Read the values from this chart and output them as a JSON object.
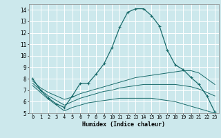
{
  "xlabel": "Humidex (Indice chaleur)",
  "bg_color": "#cce8ec",
  "grid_color": "#ffffff",
  "line_color": "#1a6b6b",
  "xlim": [
    -0.5,
    23.5
  ],
  "ylim": [
    5,
    14.5
  ],
  "yticks": [
    5,
    6,
    7,
    8,
    9,
    10,
    11,
    12,
    13,
    14
  ],
  "xticks": [
    0,
    1,
    2,
    3,
    4,
    5,
    6,
    7,
    8,
    9,
    10,
    11,
    12,
    13,
    14,
    15,
    16,
    17,
    18,
    19,
    20,
    21,
    22,
    23
  ],
  "line1_x": [
    0,
    1,
    2,
    3,
    4,
    5,
    6,
    7,
    8,
    9,
    10,
    11,
    12,
    13,
    14,
    15,
    16,
    17,
    18,
    19,
    20,
    21,
    22,
    23
  ],
  "line1_y": [
    8.0,
    7.0,
    6.3,
    5.8,
    5.5,
    6.5,
    7.6,
    7.6,
    8.4,
    9.3,
    10.7,
    12.5,
    13.8,
    14.1,
    14.1,
    13.5,
    12.6,
    10.5,
    9.2,
    8.8,
    8.1,
    7.5,
    6.5,
    5.1
  ],
  "line2_x": [
    0,
    1,
    2,
    3,
    4,
    5,
    6,
    7,
    8,
    9,
    10,
    11,
    12,
    13,
    14,
    15,
    16,
    17,
    18,
    19,
    20,
    21,
    22,
    23
  ],
  "line2_y": [
    7.8,
    7.2,
    6.8,
    6.5,
    6.2,
    6.4,
    6.7,
    6.9,
    7.1,
    7.3,
    7.5,
    7.7,
    7.9,
    8.1,
    8.2,
    8.3,
    8.4,
    8.5,
    8.6,
    8.7,
    8.7,
    8.5,
    8.0,
    7.5
  ],
  "line3_x": [
    0,
    1,
    2,
    3,
    4,
    5,
    6,
    7,
    8,
    9,
    10,
    11,
    12,
    13,
    14,
    15,
    16,
    17,
    18,
    19,
    20,
    21,
    22,
    23
  ],
  "line3_y": [
    7.6,
    7.0,
    6.5,
    6.1,
    5.7,
    6.0,
    6.3,
    6.5,
    6.7,
    6.9,
    7.0,
    7.2,
    7.3,
    7.4,
    7.5,
    7.5,
    7.5,
    7.5,
    7.5,
    7.4,
    7.3,
    7.1,
    6.8,
    6.5
  ],
  "line4_x": [
    0,
    1,
    2,
    3,
    4,
    5,
    6,
    7,
    8,
    9,
    10,
    11,
    12,
    13,
    14,
    15,
    16,
    17,
    18,
    19,
    20,
    21,
    22,
    23
  ],
  "line4_y": [
    7.4,
    6.8,
    6.2,
    5.7,
    5.2,
    5.5,
    5.7,
    5.9,
    6.0,
    6.1,
    6.2,
    6.3,
    6.3,
    6.3,
    6.3,
    6.3,
    6.2,
    6.1,
    6.0,
    5.8,
    5.6,
    5.4,
    5.2,
    5.0
  ],
  "xlabel_fontsize": 6,
  "tick_fontsize": 5,
  "ytick_fontsize": 5.5
}
